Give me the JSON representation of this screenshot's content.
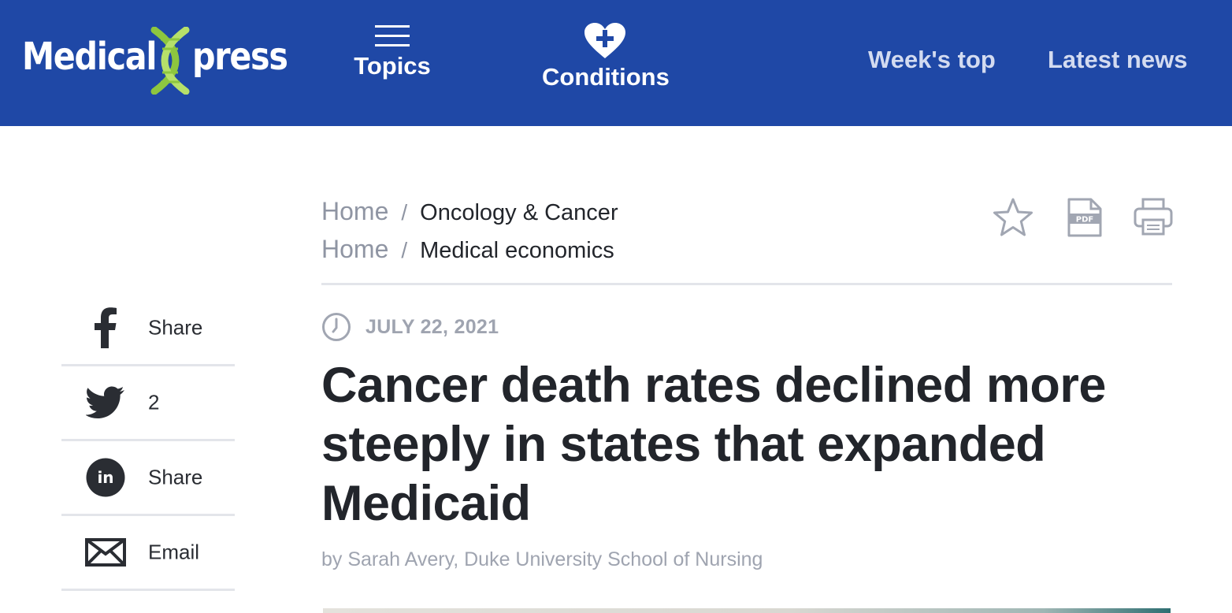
{
  "header": {
    "logo": {
      "left": "Medical",
      "right": "press"
    },
    "nav": {
      "topics": "Topics",
      "conditions": "Conditions",
      "weeks_top": "Week's top",
      "latest_news": "Latest news"
    },
    "colors": {
      "bar": "#1f48a6",
      "text": "#ffffff",
      "muted_text": "#d3dbf0",
      "logo_dna": "#8dc63f"
    }
  },
  "breadcrumbs": [
    {
      "home": "Home",
      "category": "Oncology & Cancer"
    },
    {
      "home": "Home",
      "category": "Medical economics"
    }
  ],
  "tools": {
    "star_icon": "star-icon",
    "pdf_icon": "pdf-icon",
    "pdf_label": "PDF",
    "print_icon": "printer-icon"
  },
  "share": [
    {
      "icon": "facebook-icon",
      "label": "Share"
    },
    {
      "icon": "twitter-icon",
      "label": "2"
    },
    {
      "icon": "linkedin-icon",
      "label": "Share"
    },
    {
      "icon": "email-icon",
      "label": "Email"
    }
  ],
  "article": {
    "date": "JULY 22, 2021",
    "title": "Cancer death rates declined more steeply in states that expanded Medicaid",
    "byline": "by Sarah Avery, Duke University School of Nursing"
  }
}
